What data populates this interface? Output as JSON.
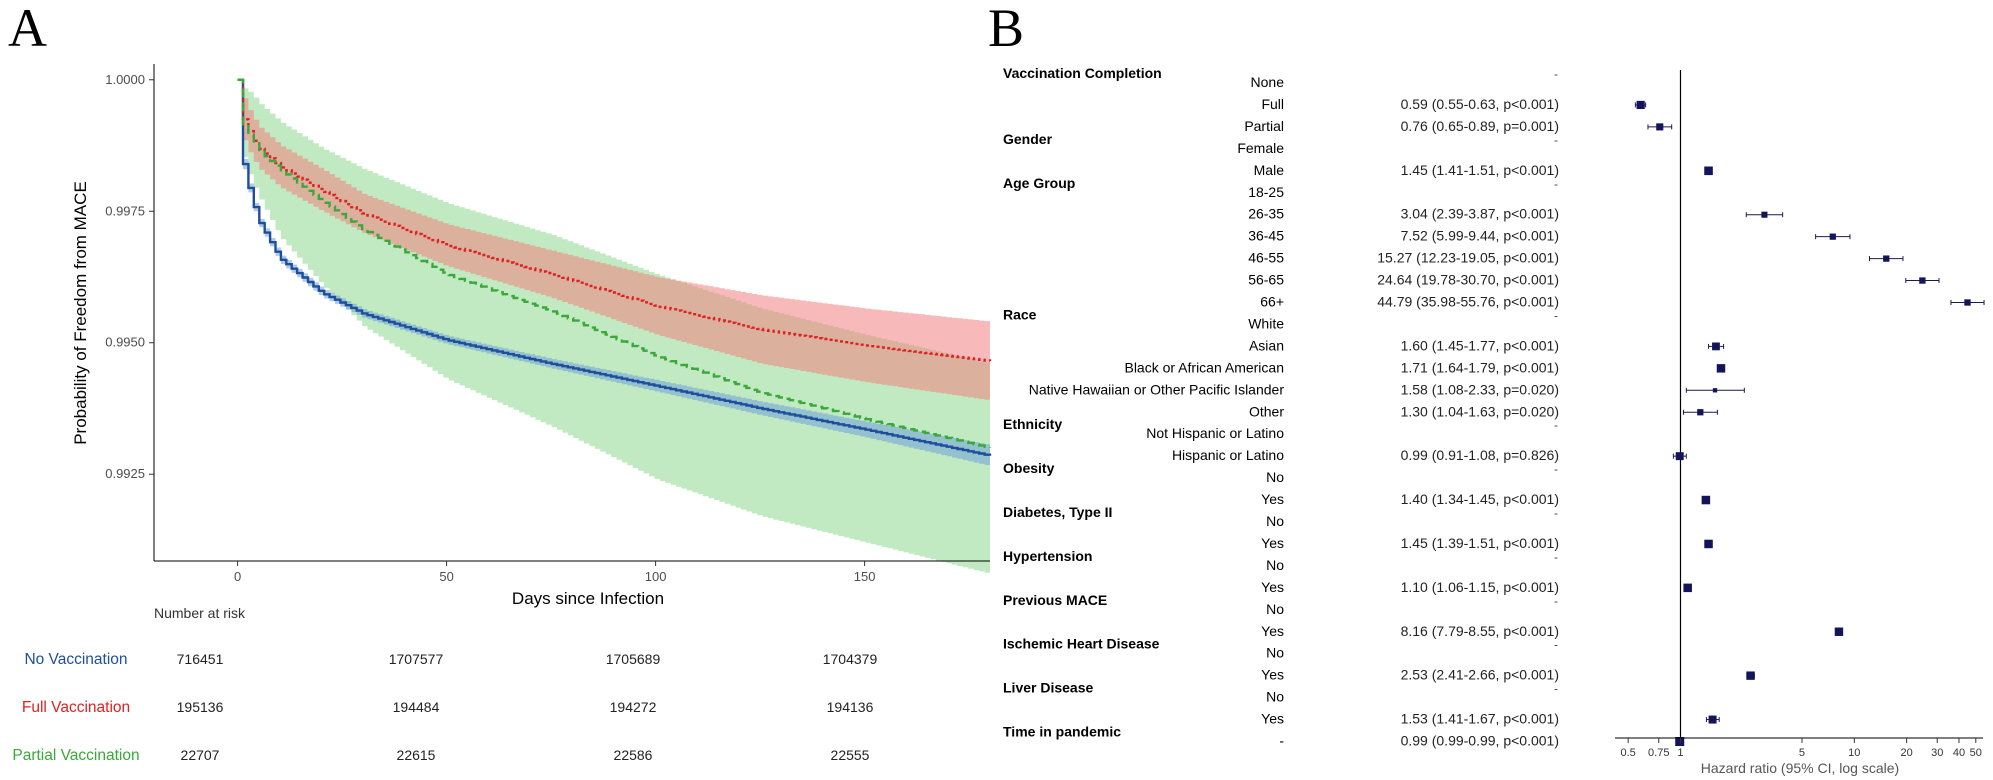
{
  "panel_a": {
    "letter": "A",
    "colors": {
      "no": "#1f4e9c",
      "full": "#e02020",
      "partial": "#3aa83a",
      "no_band": "#6f9fd8",
      "full_band": "#f08080",
      "partial_band": "#8fd88f"
    },
    "risk_table": {
      "heading": "Number at risk",
      "rows": [
        {
          "label": "No Vaccination",
          "color": "#1f4e9c",
          "values": [
            "716451",
            "1707577",
            "1705689",
            "1704379"
          ]
        },
        {
          "label": "Full Vaccination",
          "color": "#e02020",
          "values": [
            "195136",
            "194484",
            "194272",
            "194136"
          ]
        },
        {
          "label": "Partial Vaccination",
          "color": "#3aa83a",
          "values": [
            "22707",
            "22615",
            "22586",
            "22555"
          ]
        }
      ]
    }
  },
  "panel_b": {
    "letter": "B"
  },
  "chart_data": [
    {
      "type": "line",
      "xlabel": "Days since Infection",
      "ylabel": "Probability of Freedom from MACE",
      "xlim": [
        -20,
        180
      ],
      "ylim": [
        0.99085,
        1.0003
      ],
      "x_ticks": [
        0,
        50,
        100,
        150
      ],
      "x_tick_labels": [
        "0",
        "50",
        "100",
        "150"
      ],
      "y_ticks": [
        1.0,
        0.9975,
        0.995,
        0.9925
      ],
      "y_tick_labels": [
        "1.0000",
        "0.9975",
        "0.9950",
        "0.9925"
      ],
      "series": [
        {
          "name": "No Vaccination",
          "style": "solid step",
          "x": [
            0,
            1,
            3,
            5,
            10,
            20,
            30,
            50,
            75,
            100,
            125,
            150,
            180
          ],
          "y": [
            1.0,
            0.9985,
            0.9978,
            0.9973,
            0.9966,
            0.99595,
            0.99555,
            0.99505,
            0.9946,
            0.99418,
            0.99375,
            0.99335,
            0.99285
          ],
          "lower": [
            1.0,
            0.9984,
            0.99772,
            0.99722,
            0.99652,
            0.99587,
            0.99547,
            0.99497,
            0.99451,
            0.99407,
            0.99362,
            0.9932,
            0.99265
          ],
          "upper": [
            1.0,
            0.9986,
            0.99788,
            0.99738,
            0.99668,
            0.99603,
            0.99563,
            0.99513,
            0.99469,
            0.99429,
            0.99388,
            0.9935,
            0.99305
          ]
        },
        {
          "name": "Full Vaccination",
          "style": "dotted",
          "x": [
            0,
            1,
            3,
            5,
            10,
            20,
            30,
            50,
            75,
            100,
            125,
            150,
            180
          ],
          "y": [
            1.0,
            0.9993,
            0.99895,
            0.9987,
            0.99835,
            0.9979,
            0.99745,
            0.99685,
            0.9963,
            0.9957,
            0.99525,
            0.99495,
            0.99465
          ],
          "lower": [
            1.0,
            0.9989,
            0.99855,
            0.9983,
            0.99795,
            0.9975,
            0.99708,
            0.99645,
            0.99585,
            0.99515,
            0.9946,
            0.99425,
            0.9939
          ],
          "upper": [
            1.0,
            0.9997,
            0.99935,
            0.9991,
            0.99875,
            0.9983,
            0.99782,
            0.99725,
            0.99675,
            0.99625,
            0.9959,
            0.99565,
            0.9954
          ]
        },
        {
          "name": "Partial Vaccination",
          "style": "dashed step",
          "x": [
            0,
            1,
            3,
            5,
            10,
            20,
            30,
            50,
            75,
            100,
            125,
            150,
            180
          ],
          "y": [
            1.0,
            0.9992,
            0.9989,
            0.99865,
            0.9983,
            0.9977,
            0.99715,
            0.9963,
            0.9956,
            0.99475,
            0.99405,
            0.99355,
            0.993
          ],
          "lower": [
            1.0,
            0.9986,
            0.9981,
            0.99775,
            0.997,
            0.9961,
            0.9953,
            0.9943,
            0.9934,
            0.9924,
            0.9917,
            0.9912,
            0.9906
          ],
          "upper": [
            1.0,
            0.99985,
            0.99975,
            0.99955,
            0.9992,
            0.9987,
            0.9983,
            0.99765,
            0.99705,
            0.9963,
            0.99565,
            0.99515,
            0.9946
          ]
        }
      ]
    },
    {
      "type": "scatter",
      "subtype": "forest plot",
      "xlabel": "Hazard ratio (95% CI, log scale)",
      "x_scale": "log",
      "xlim": [
        0.42,
        55
      ],
      "x_ticks": [
        0.5,
        0.75,
        1,
        5,
        10,
        20,
        30,
        40,
        50
      ],
      "x_tick_labels": [
        "0.5",
        "0.75",
        "1",
        "5",
        "10",
        "20",
        "30",
        "40",
        "50"
      ],
      "reference_line": 1,
      "rows": [
        {
          "group": "Vaccination Completion",
          "level": "None",
          "text": "-"
        },
        {
          "group": "",
          "level": "Full",
          "text": "0.59 (0.55-0.63, p<0.001)",
          "hr": 0.59,
          "lo": 0.55,
          "hi": 0.63
        },
        {
          "group": "",
          "level": "Partial",
          "text": "0.76 (0.65-0.89, p=0.001)",
          "hr": 0.76,
          "lo": 0.65,
          "hi": 0.89
        },
        {
          "group": "Gender",
          "level": "Female",
          "text": "-"
        },
        {
          "group": "",
          "level": "Male",
          "text": "1.45 (1.41-1.51, p<0.001)",
          "hr": 1.45,
          "lo": 1.41,
          "hi": 1.51
        },
        {
          "group": "Age Group",
          "level": "18-25",
          "text": "-"
        },
        {
          "group": "",
          "level": "26-35",
          "text": "3.04 (2.39-3.87, p<0.001)",
          "hr": 3.04,
          "lo": 2.39,
          "hi": 3.87
        },
        {
          "group": "",
          "level": "36-45",
          "text": "7.52 (5.99-9.44, p<0.001)",
          "hr": 7.52,
          "lo": 5.99,
          "hi": 9.44
        },
        {
          "group": "",
          "level": "46-55",
          "text": "15.27 (12.23-19.05, p<0.001)",
          "hr": 15.27,
          "lo": 12.23,
          "hi": 19.05
        },
        {
          "group": "",
          "level": "56-65",
          "text": "24.64 (19.78-30.70, p<0.001)",
          "hr": 24.64,
          "lo": 19.78,
          "hi": 30.7
        },
        {
          "group": "",
          "level": "66+",
          "text": "44.79 (35.98-55.76, p<0.001)",
          "hr": 44.79,
          "lo": 35.98,
          "hi": 55.76
        },
        {
          "group": "Race",
          "level": "White",
          "text": "-"
        },
        {
          "group": "",
          "level": "Asian",
          "text": "1.60 (1.45-1.77, p<0.001)",
          "hr": 1.6,
          "lo": 1.45,
          "hi": 1.77
        },
        {
          "group": "",
          "level": "Black or African American",
          "text": "1.71 (1.64-1.79, p<0.001)",
          "hr": 1.71,
          "lo": 1.64,
          "hi": 1.79
        },
        {
          "group": "",
          "level": "Native Hawaiian or Other Pacific Islander",
          "text": "1.58 (1.08-2.33, p=0.020)",
          "hr": 1.58,
          "lo": 1.08,
          "hi": 2.33
        },
        {
          "group": "",
          "level": "Other",
          "text": "1.30 (1.04-1.63, p=0.020)",
          "hr": 1.3,
          "lo": 1.04,
          "hi": 1.63
        },
        {
          "group": "Ethnicity",
          "level": "Not Hispanic or Latino",
          "text": "-"
        },
        {
          "group": "",
          "level": "Hispanic or Latino",
          "text": "0.99 (0.91-1.08, p=0.826)",
          "hr": 0.99,
          "lo": 0.91,
          "hi": 1.08
        },
        {
          "group": "Obesity",
          "level": "No",
          "text": "-"
        },
        {
          "group": "",
          "level": "Yes",
          "text": "1.40 (1.34-1.45, p<0.001)",
          "hr": 1.4,
          "lo": 1.34,
          "hi": 1.45
        },
        {
          "group": "Diabetes, Type II",
          "level": "No",
          "text": "-"
        },
        {
          "group": "",
          "level": "Yes",
          "text": "1.45 (1.39-1.51, p<0.001)",
          "hr": 1.45,
          "lo": 1.39,
          "hi": 1.51
        },
        {
          "group": "Hypertension",
          "level": "No",
          "text": "-"
        },
        {
          "group": "",
          "level": "Yes",
          "text": "1.10 (1.06-1.15, p<0.001)",
          "hr": 1.1,
          "lo": 1.06,
          "hi": 1.15
        },
        {
          "group": "Previous MACE",
          "level": "No",
          "text": "-"
        },
        {
          "group": "",
          "level": "Yes",
          "text": "8.16 (7.79-8.55, p<0.001)",
          "hr": 8.16,
          "lo": 7.79,
          "hi": 8.55
        },
        {
          "group": "Ischemic Heart Disease",
          "level": "No",
          "text": "-"
        },
        {
          "group": "",
          "level": "Yes",
          "text": "2.53 (2.41-2.66, p<0.001)",
          "hr": 2.53,
          "lo": 2.41,
          "hi": 2.66
        },
        {
          "group": "Liver Disease",
          "level": "No",
          "text": "-"
        },
        {
          "group": "",
          "level": "Yes",
          "text": "1.53 (1.41-1.67, p<0.001)",
          "hr": 1.53,
          "lo": 1.41,
          "hi": 1.67
        },
        {
          "group": "Time in pandemic",
          "level": "-",
          "text": "0.99 (0.99-0.99, p<0.001)",
          "hr": 0.99,
          "lo": 0.99,
          "hi": 0.99
        }
      ]
    }
  ]
}
